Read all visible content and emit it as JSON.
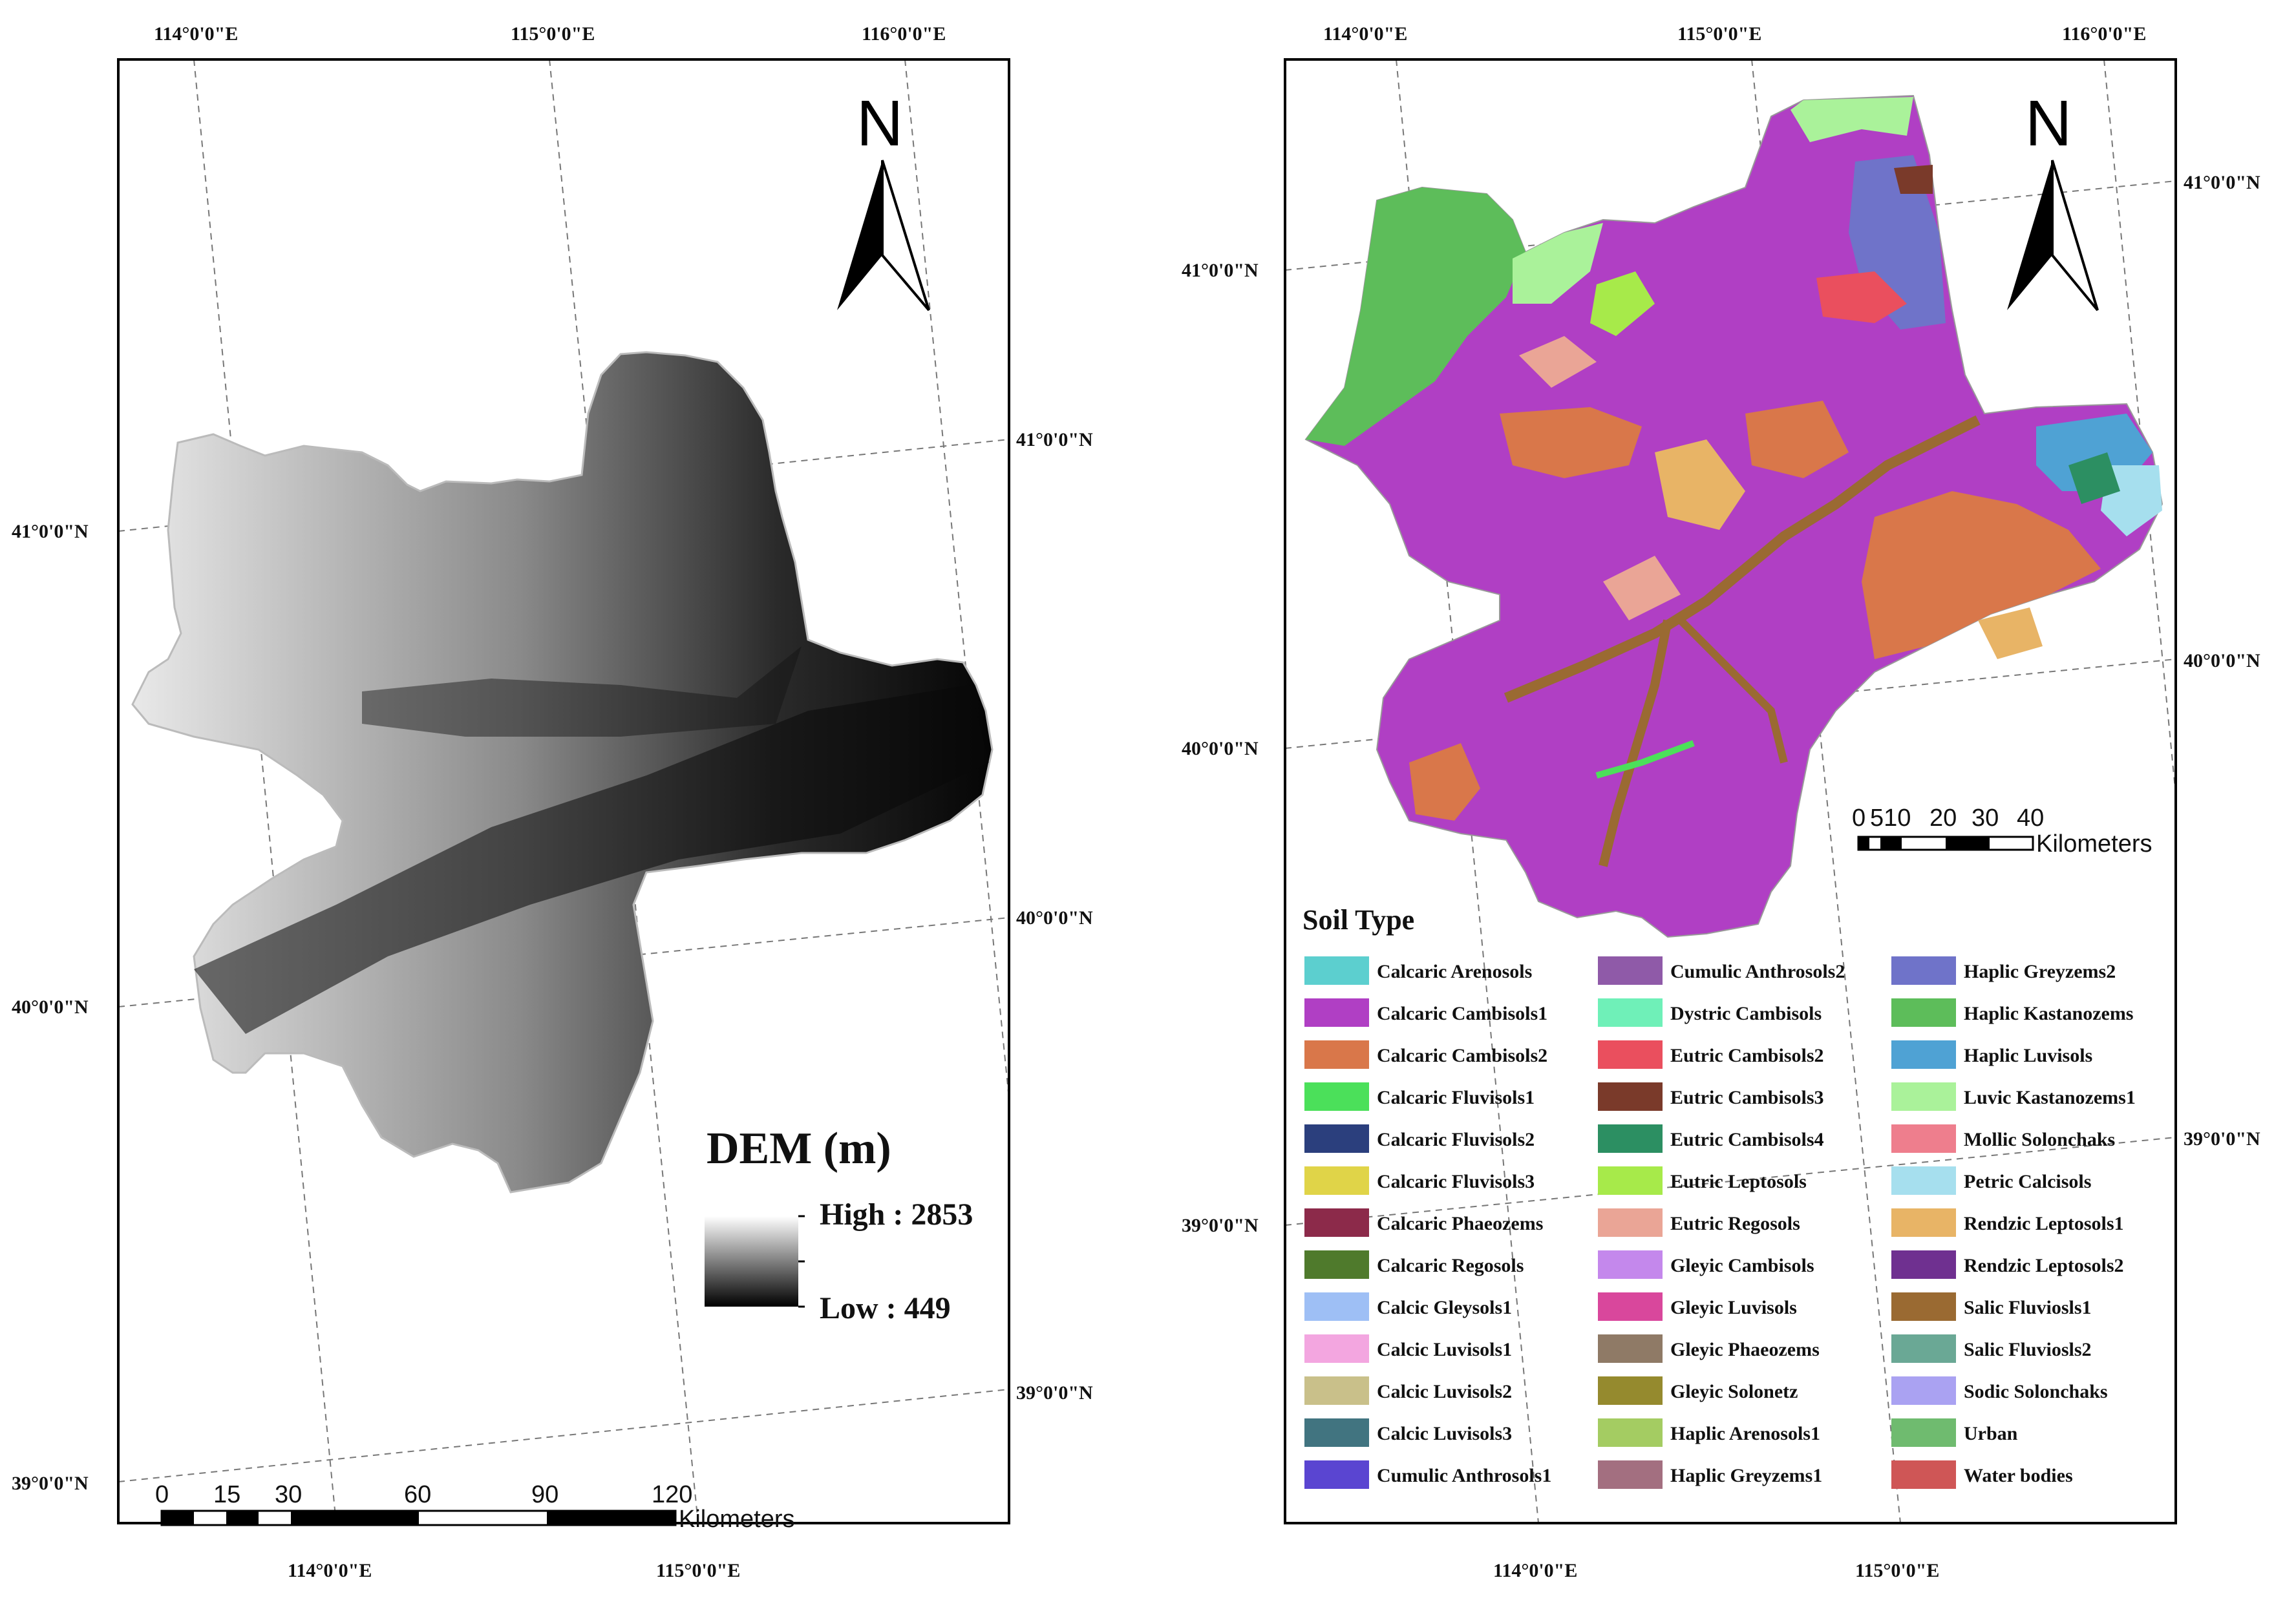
{
  "left_map": {
    "top_lon_labels": [
      "114°0'0\"E",
      "115°0'0\"E",
      "116°0'0\"E"
    ],
    "bottom_lon_labels": [
      "114°0'0\"E",
      "115°0'0\"E"
    ],
    "left_lat_labels": [
      "41°0'0\"N",
      "40°0'0\"N",
      "39°0'0\"N"
    ],
    "right_lat_labels": [
      "41°0'0\"N",
      "40°0'0\"N",
      "39°0'0\"N"
    ],
    "north_label": "N",
    "legend": {
      "title": "DEM (m)",
      "high": "High : 2853",
      "low": "Low : 449"
    },
    "scale_bar": {
      "ticks": [
        "0",
        "15",
        "30",
        "60",
        "90",
        "120"
      ],
      "unit": "Kilometers"
    }
  },
  "right_map": {
    "top_lon_labels": [
      "114°0'0\"E",
      "115°0'0\"E",
      "116°0'0\"E"
    ],
    "bottom_lon_labels": [
      "114°0'0\"E",
      "115°0'0\"E"
    ],
    "left_lat_labels": [
      "41°0'0\"N",
      "40°0'0\"N",
      "39°0'0\"N"
    ],
    "right_lat_labels": [
      "41°0'0\"N",
      "40°0'0\"N",
      "39°0'0\"N"
    ],
    "north_label": "N",
    "scale_bar": {
      "ticks": [
        "0",
        "510",
        "20",
        "30",
        "40"
      ],
      "unit": "Kilometers"
    },
    "legend_title": "Soil Type",
    "soil_types": [
      {
        "label": "Calcaric Arenosols",
        "color": "#5ccfcf"
      },
      {
        "label": "Calcaric Cambisols1",
        "color": "#b03fc4"
      },
      {
        "label": "Calcaric Cambisols2",
        "color": "#d9774a"
      },
      {
        "label": "Calcaric Fluvisols1",
        "color": "#4be05a"
      },
      {
        "label": "Calcaric Fluvisols2",
        "color": "#2b3f7d"
      },
      {
        "label": "Calcaric Fluvisols3",
        "color": "#e0d448"
      },
      {
        "label": "Calcaric Phaeozems",
        "color": "#8c2a4a"
      },
      {
        "label": "Calcaric Regosols",
        "color": "#4f7a2c"
      },
      {
        "label": "Calcic Gleysols1",
        "color": "#9ebff5"
      },
      {
        "label": "Calcic Luvisols1",
        "color": "#f3a6e0"
      },
      {
        "label": "Calcic Luvisols2",
        "color": "#c9c08a"
      },
      {
        "label": "Calcic Luvisols3",
        "color": "#417480"
      },
      {
        "label": "Cumulic Anthrosols1",
        "color": "#5a45d1"
      },
      {
        "label": "Cumulic Anthrosols2",
        "color": "#8f5aa8"
      },
      {
        "label": "Dystric Cambisols",
        "color": "#6ff0b8"
      },
      {
        "label": "Eutric Cambisols2",
        "color": "#ea4f5e"
      },
      {
        "label": "Eutric Cambisols3",
        "color": "#7a3a2a"
      },
      {
        "label": "Eutric Cambisols4",
        "color": "#2c8f62"
      },
      {
        "label": "Eutric Leptosols",
        "color": "#a7ea4a"
      },
      {
        "label": "Eutric Regosols",
        "color": "#eaa596"
      },
      {
        "label": "Gleyic Cambisols",
        "color": "#c488ec"
      },
      {
        "label": "Gleyic Luvisols",
        "color": "#d9479c"
      },
      {
        "label": "Gleyic Phaeozems",
        "color": "#8f7a66"
      },
      {
        "label": "Gleyic Solonetz",
        "color": "#958a2e"
      },
      {
        "label": "Haplic Arenosols1",
        "color": "#a4cc62"
      },
      {
        "label": "Haplic Greyzems1",
        "color": "#a36f80"
      },
      {
        "label": "Haplic Greyzems2",
        "color": "#6f73c9"
      },
      {
        "label": "Haplic Kastanozems",
        "color": "#5dbd5a"
      },
      {
        "label": "Haplic Luvisols",
        "color": "#4fa2d4"
      },
      {
        "label": "Luvic Kastanozems1",
        "color": "#aaf29a"
      },
      {
        "label": "Mollic Solonchaks",
        "color": "#ee7e8d"
      },
      {
        "label": "Petric Calcisols",
        "color": "#a6dfee"
      },
      {
        "label": "Rendzic Leptosols1",
        "color": "#e8b466"
      },
      {
        "label": "Rendzic Leptosols2",
        "color": "#6f3090"
      },
      {
        "label": "Salic Fluviosls1",
        "color": "#9a6a32"
      },
      {
        "label": "Salic Fluviosls2",
        "color": "#6aa895"
      },
      {
        "label": "Sodic Solonchaks",
        "color": "#aaa2f2"
      },
      {
        "label": "Urban",
        "color": "#6fbb6f"
      },
      {
        "label": "Water bodies",
        "color": "#cf5656"
      }
    ]
  }
}
